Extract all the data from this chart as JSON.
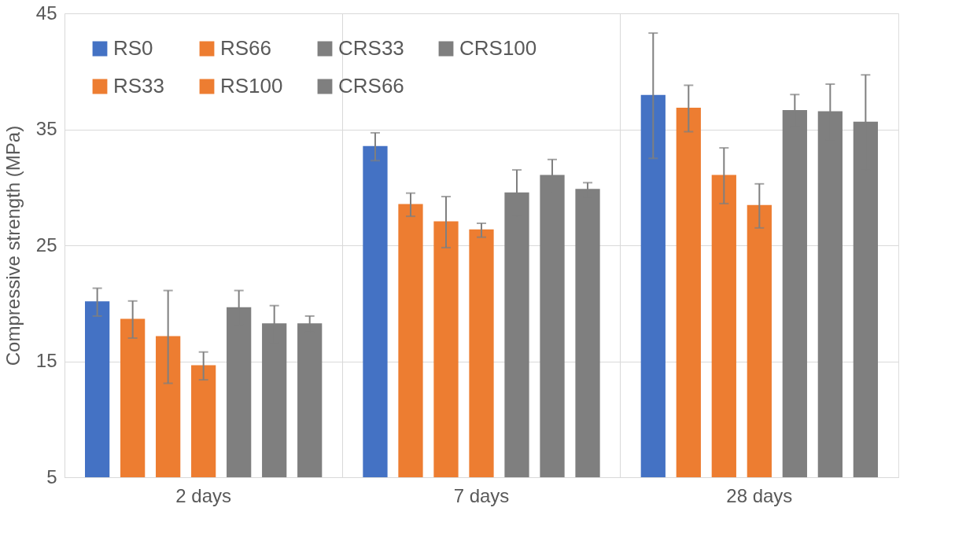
{
  "chart_data": {
    "type": "bar",
    "ylabel": "Compressive strength (MPa)",
    "categories": [
      "2 days",
      "7 days",
      "28 days"
    ],
    "ylim": [
      5,
      45
    ],
    "yticks": [
      5,
      15,
      25,
      35,
      45
    ],
    "grid": true,
    "legend": "top left",
    "series": [
      {
        "name": "RS0",
        "color": "#4472c4",
        "values": [
          20.1,
          33.5,
          37.9
        ],
        "errors": [
          1.2,
          1.2,
          5.4
        ]
      },
      {
        "name": "RS33",
        "color": "#ed7d31",
        "values": [
          18.6,
          28.5,
          36.8
        ],
        "errors": [
          1.6,
          1.0,
          2.0
        ]
      },
      {
        "name": "RS66",
        "color": "#ed7d31",
        "values": [
          17.1,
          27.0,
          31.0
        ],
        "errors": [
          4.0,
          2.2,
          2.4
        ]
      },
      {
        "name": "RS100",
        "color": "#ed7d31",
        "values": [
          14.6,
          26.3,
          28.4
        ],
        "errors": [
          1.2,
          0.6,
          1.9
        ]
      },
      {
        "name": "CRS33",
        "color": "#7f7f7f",
        "values": [
          19.6,
          29.5,
          36.6
        ],
        "errors": [
          1.5,
          2.0,
          1.4
        ]
      },
      {
        "name": "CRS66",
        "color": "#7f7f7f",
        "values": [
          18.2,
          31.0,
          36.5
        ],
        "errors": [
          1.6,
          1.4,
          2.4
        ]
      },
      {
        "name": "CRS100",
        "color": "#7f7f7f",
        "values": [
          18.2,
          29.8,
          35.6
        ],
        "errors": [
          0.7,
          0.6,
          4.1
        ]
      }
    ]
  }
}
